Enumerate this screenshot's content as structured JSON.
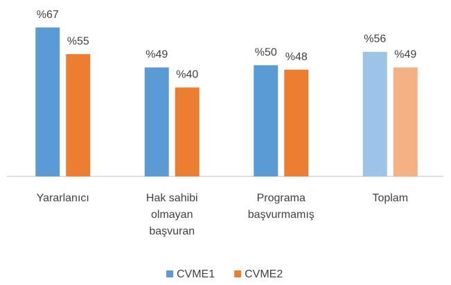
{
  "chart_data": {
    "type": "bar",
    "categories": [
      [
        "Yararlanıcı"
      ],
      [
        "Hak sahibi",
        "olmayan",
        "başvuran"
      ],
      [
        "Programa",
        "başvurmamış"
      ],
      [
        "Toplam"
      ]
    ],
    "series": [
      {
        "name": "CVME1",
        "color": "#5b9bd5",
        "colors": [
          "#5b9bd5",
          "#5b9bd5",
          "#5b9bd5",
          "#9dc3e6"
        ],
        "values": [
          67,
          49,
          50,
          56
        ],
        "value_labels": [
          "%67",
          "%49",
          "%50",
          "%56"
        ]
      },
      {
        "name": "CVME2",
        "color": "#ed7d31",
        "colors": [
          "#ed7d31",
          "#ed7d31",
          "#ed7d31",
          "#f4b183"
        ],
        "values": [
          55,
          40,
          48,
          49
        ],
        "value_labels": [
          "%55",
          "%40",
          "%48",
          "%49"
        ]
      }
    ],
    "ylim": [
      0,
      70
    ],
    "legend": "bottom"
  }
}
